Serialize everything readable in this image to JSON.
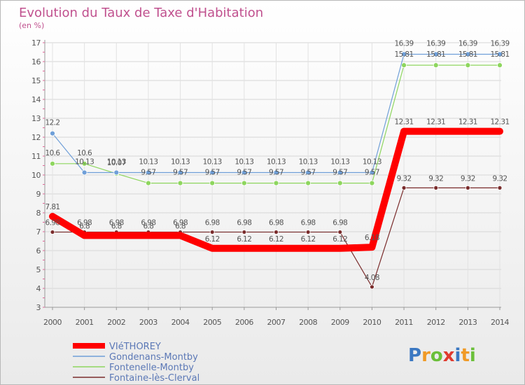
{
  "chart_data": {
    "type": "line",
    "title": "Evolution du Taux de Taxe d'Habitation",
    "subtitle": "(en %)",
    "x": [
      "2000",
      "2001",
      "2002",
      "2003",
      "2004",
      "2005",
      "2006",
      "2007",
      "2008",
      "2009",
      "2010",
      "2011",
      "2012",
      "2013",
      "2014"
    ],
    "ylim": [
      3,
      17
    ],
    "yticks": [
      3,
      4,
      5,
      6,
      7,
      8,
      9,
      10,
      11,
      12,
      13,
      14,
      15,
      16,
      17
    ],
    "grid": true,
    "legend_position": "bottom-left",
    "series": [
      {
        "name": "VIéTHOREY",
        "color": "#ff0000",
        "values": [
          7.81,
          6.8,
          6.8,
          6.8,
          6.8,
          6.12,
          6.12,
          6.12,
          6.12,
          6.12,
          6.18,
          12.31,
          12.31,
          12.31,
          12.31
        ],
        "labels": [
          "7.81",
          "6.8",
          "6.8",
          "6.8",
          "6.8",
          "6.12",
          "6.12",
          "6.12",
          "6.12",
          "6.12",
          "6.18",
          "12.31",
          "12.31",
          "12.31",
          "12.31"
        ]
      },
      {
        "name": "Gondenans-Montby",
        "color": "#6f9fd8",
        "values": [
          12.2,
          10.13,
          10.13,
          10.13,
          10.13,
          10.13,
          10.13,
          10.13,
          10.13,
          10.13,
          10.13,
          16.39,
          16.39,
          16.39,
          16.39
        ],
        "labels": [
          "12.2",
          "10.13",
          "10.13",
          "10.13",
          "10.13",
          "10.13",
          "10.13",
          "10.13",
          "10.13",
          "10.13",
          "10.13",
          "16.39",
          "16.39",
          "16.39",
          "16.39"
        ]
      },
      {
        "name": "Fontenelle-Montby",
        "color": "#8ed65e",
        "values": [
          10.6,
          10.6,
          10.07,
          9.57,
          9.57,
          9.57,
          9.57,
          9.57,
          9.57,
          9.57,
          9.57,
          15.81,
          15.81,
          15.81,
          15.81
        ],
        "labels": [
          "10.6",
          "10.6",
          "10.07",
          "9.57",
          "9.57",
          "9.57",
          "9.57",
          "9.57",
          "9.57",
          "9.57",
          "9.57",
          "15.81",
          "15.81",
          "15.81",
          "15.81"
        ]
      },
      {
        "name": "Fontaine-lès-Clerval",
        "color": "#7a2c2c",
        "values": [
          6.98,
          6.98,
          6.98,
          6.98,
          6.98,
          6.98,
          6.98,
          6.98,
          6.98,
          6.98,
          4.08,
          9.32,
          9.32,
          9.32,
          9.32
        ],
        "labels": [
          "6.98",
          "6.98",
          "6.98",
          "6.98",
          "6.98",
          "6.98",
          "6.98",
          "6.98",
          "6.98",
          "6.98",
          "4.08",
          "9.32",
          "9.32",
          "9.32",
          "9.32"
        ]
      }
    ]
  },
  "logo": {
    "text": "Proxiti",
    "letters": [
      "P",
      "r",
      "o",
      "x",
      "i",
      "t",
      "i"
    ],
    "colors": [
      "#3b78c2",
      "#f09a27",
      "#6bbf3a",
      "#e03a2e",
      "#3b78c2",
      "#f09a27",
      "#6bbf3a"
    ]
  }
}
